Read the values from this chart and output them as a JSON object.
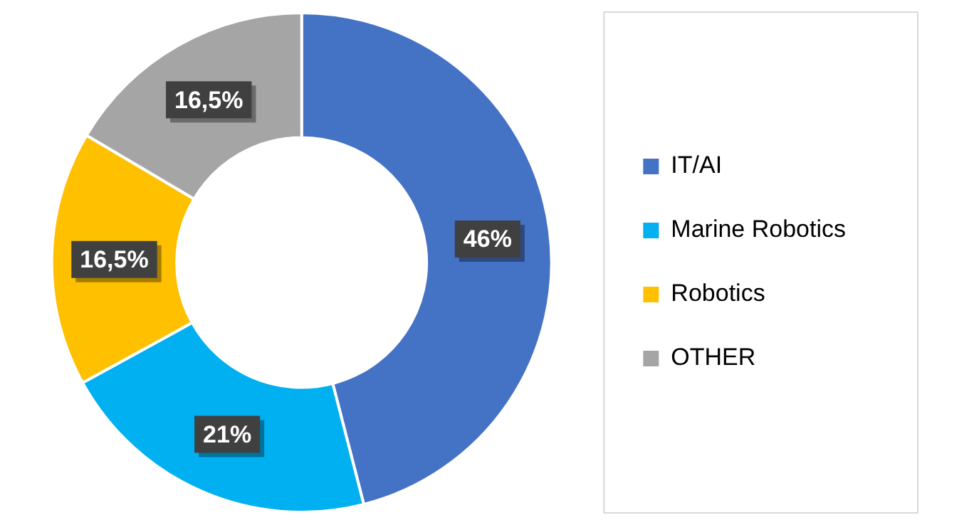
{
  "chart_data": {
    "type": "donut",
    "categories": [
      "IT/AI",
      "Marine Robotics",
      "Robotics",
      "OTHER"
    ],
    "values": [
      46,
      21,
      16.5,
      16.5
    ],
    "colors": [
      "#4472c4",
      "#00b0f0",
      "#ffc000",
      "#a5a5a5"
    ],
    "value_labels": [
      "46%",
      "21%",
      "16,5%",
      "16,5%"
    ],
    "legend": "right"
  }
}
